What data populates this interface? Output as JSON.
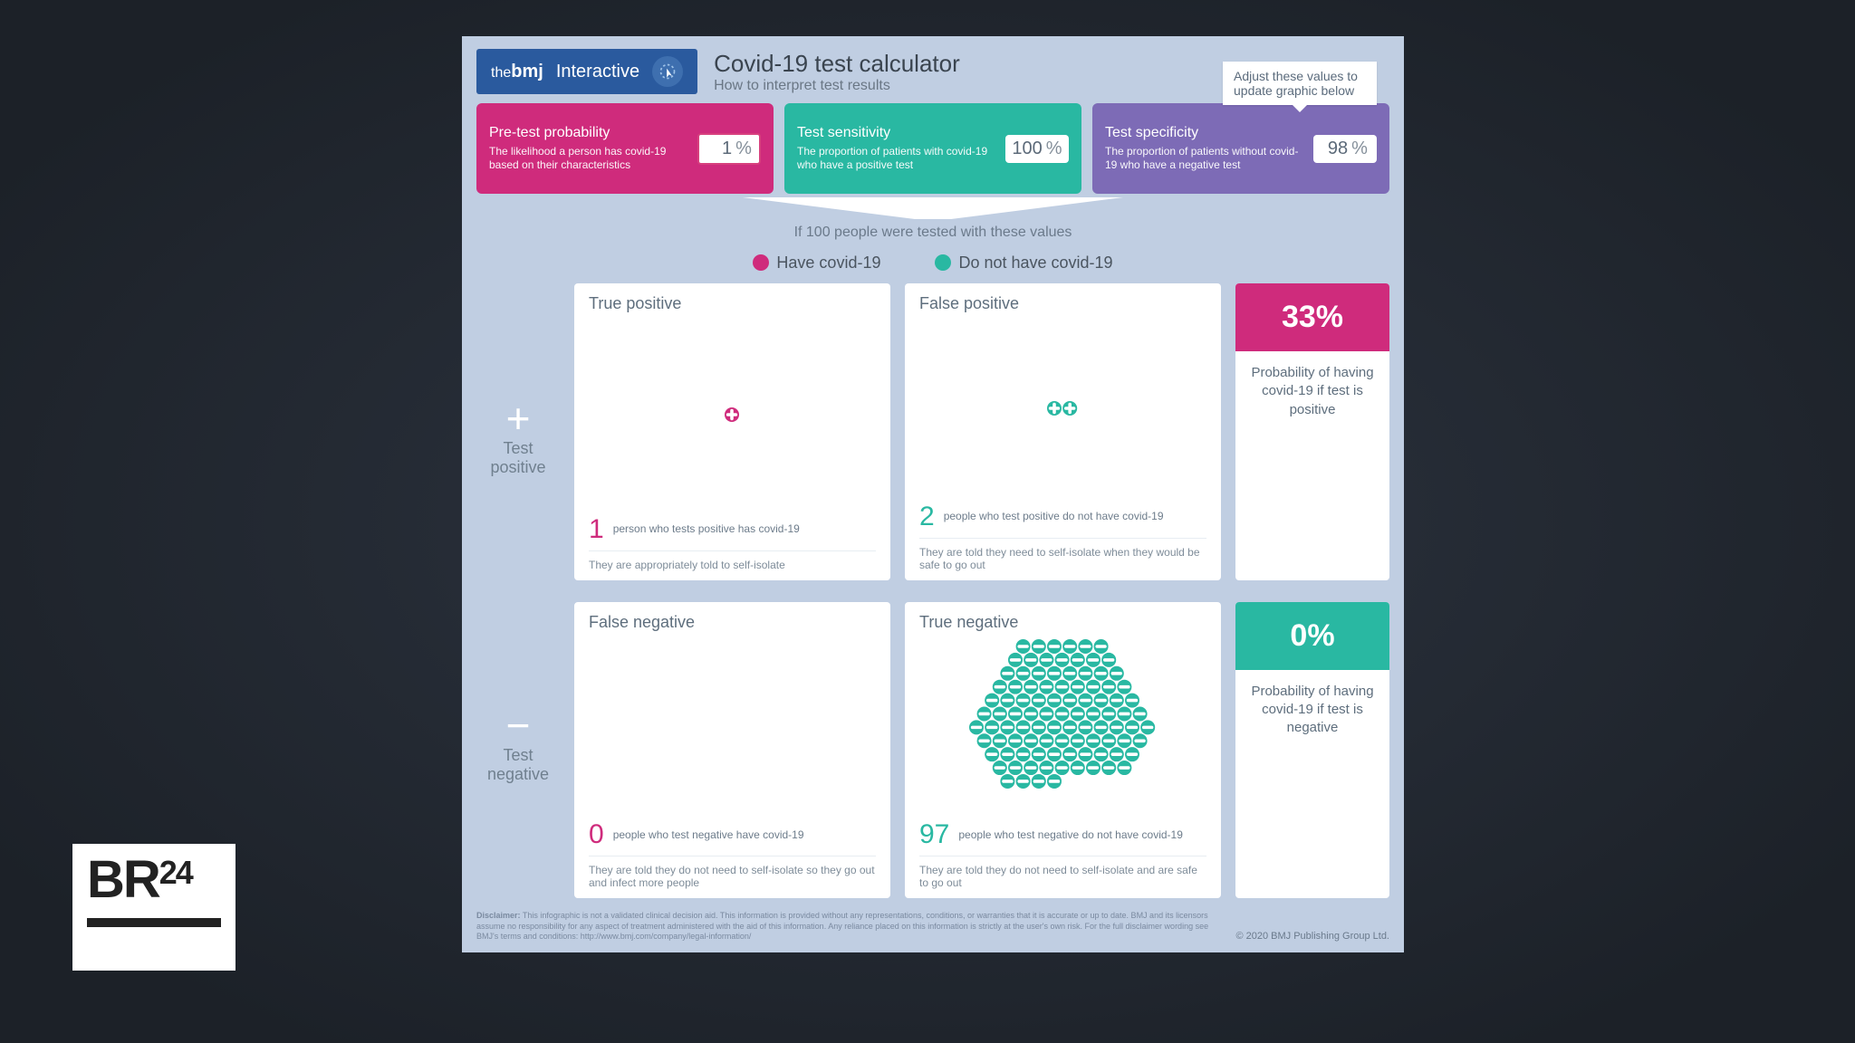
{
  "colors": {
    "page_bg_center": "#2d3440",
    "page_bg_edge": "#1c2128",
    "card_bg": "#c0cee2",
    "pink": "#cf2b7c",
    "teal": "#29b8a2",
    "purple": "#7d6bb6",
    "bmj_blue": "#2a5a9e",
    "text_main": "#4a5568",
    "text_soft": "#6b7a8b",
    "white": "#ffffff"
  },
  "br24": {
    "label": "BR",
    "suffix": "24"
  },
  "header": {
    "brand_the": "the",
    "brand_bmj": "bmj",
    "interactive": "Interactive",
    "title": "Covid-19 test calculator",
    "subtitle": "How to interpret test results",
    "tooltip": "Adjust these values to update graphic below"
  },
  "inputs": {
    "pretest": {
      "title": "Pre-test probability",
      "desc": "The likelihood a person has covid-19 based on their characteristics",
      "value": "1",
      "bg": "#cf2b7c"
    },
    "sensitivity": {
      "title": "Test sensitivity",
      "desc": "The proportion of patients with covid-19 who have a positive test",
      "value": "100",
      "bg": "#29b8a2"
    },
    "specificity": {
      "title": "Test specificity",
      "desc": "The proportion of patients without covid-19 who have a negative test",
      "value": "98",
      "bg": "#7d6bb6"
    },
    "pct_sign": "%"
  },
  "if100": "If 100 people were tested with these values",
  "legend": {
    "have": "Have covid-19",
    "nothave": "Do not have covid-19"
  },
  "rows": {
    "pos": {
      "sign": "+",
      "label1": "Test",
      "label2": "positive"
    },
    "neg": {
      "sign": "−",
      "label1": "Test",
      "label2": "negative"
    }
  },
  "cells": {
    "tp": {
      "title": "True positive",
      "count": "1",
      "count_color": "#cf2b7c",
      "icons": 1,
      "icon_color": "#cf2b7c",
      "icon_glyph": "plus",
      "desc": "person who tests positive has covid-19",
      "foot": "They are appropriately told to self-isolate"
    },
    "fp": {
      "title": "False positive",
      "count": "2",
      "count_color": "#29b8a2",
      "icons": 2,
      "icon_color": "#29b8a2",
      "icon_glyph": "plus",
      "desc": "people who test positive do not have covid-19",
      "foot": "They are told they need to self-isolate when they would be safe to go out"
    },
    "fn": {
      "title": "False negative",
      "count": "0",
      "count_color": "#cf2b7c",
      "icons": 0,
      "icon_color": "#cf2b7c",
      "icon_glyph": "minus",
      "desc": "people who test negative have covid-19",
      "foot": "They are told they do not need to self-isolate so they go out and infect more people"
    },
    "tn": {
      "title": "True negative",
      "count": "97",
      "count_color": "#29b8a2",
      "icons": 97,
      "icon_color": "#29b8a2",
      "icon_glyph": "minus",
      "desc": "people who test negative do not have covid-19",
      "foot": "They are told they do not need to self-isolate and are safe to go out"
    }
  },
  "results": {
    "pos": {
      "value": "33%",
      "bg": "#cf2b7c",
      "desc": "Probability of having covid-19 if test is positive"
    },
    "neg": {
      "value": "0%",
      "bg": "#29b8a2",
      "desc": "Probability of having covid-19 if test is negative"
    }
  },
  "disclaimer": {
    "label": "Disclaimer:",
    "text": "This infographic is not a validated clinical decision aid. This information is provided without any representations, conditions, or warranties that it is accurate or up to date. BMJ and its licensors assume no responsibility for any aspect of treatment administered with the aid of this information. Any reliance placed on this information is strictly at the user's own risk. For the full disclaimer wording see BMJ's terms and conditions: http://www.bmj.com/company/legal-information/",
    "copyright": "© 2020 BMJ Publishing Group Ltd."
  },
  "hex": {
    "radius": 8,
    "gap": 1.2,
    "per_row": [
      6,
      7,
      8,
      9,
      10,
      11,
      12,
      11,
      10,
      9,
      8,
      7,
      6
    ]
  }
}
